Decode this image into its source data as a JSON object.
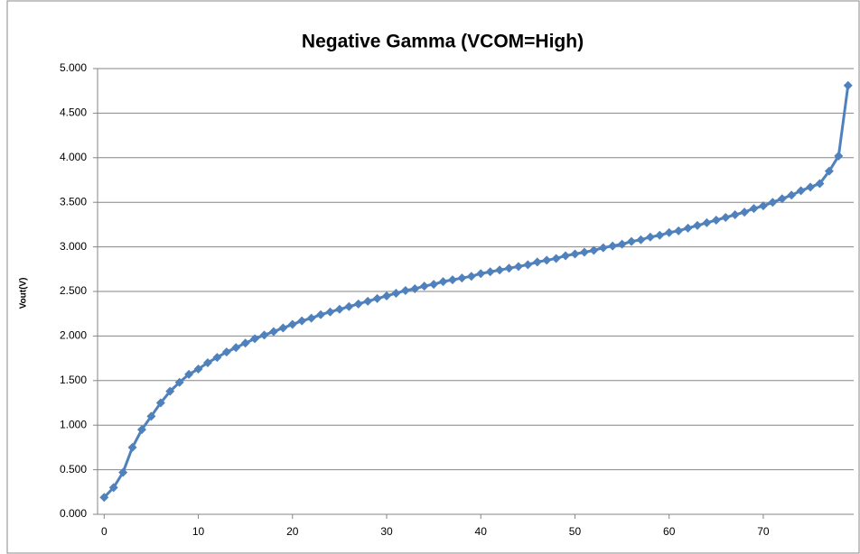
{
  "chart_data": {
    "type": "line",
    "title": "Negative Gamma (VCOM=High)",
    "y_label": "Vout(V)",
    "x": [
      0,
      1,
      2,
      3,
      4,
      5,
      6,
      7,
      8,
      9,
      10,
      11,
      12,
      13,
      14,
      15,
      16,
      17,
      18,
      19,
      20,
      21,
      22,
      23,
      24,
      25,
      26,
      27,
      28,
      29,
      30,
      31,
      32,
      33,
      34,
      35,
      36,
      37,
      38,
      39,
      40,
      41,
      42,
      43,
      44,
      45,
      46,
      47,
      48,
      49,
      50,
      51,
      52,
      53,
      54,
      55,
      56,
      57,
      58,
      59,
      60,
      61,
      62,
      63,
      64,
      65,
      66,
      67,
      68,
      69,
      70,
      71,
      72,
      73,
      74,
      75,
      76,
      77,
      78,
      79
    ],
    "values": [
      0.19,
      0.3,
      0.47,
      0.75,
      0.95,
      1.1,
      1.25,
      1.38,
      1.48,
      1.57,
      1.63,
      1.7,
      1.76,
      1.82,
      1.87,
      1.92,
      1.97,
      2.01,
      2.05,
      2.09,
      2.13,
      2.17,
      2.2,
      2.24,
      2.27,
      2.3,
      2.33,
      2.36,
      2.39,
      2.42,
      2.45,
      2.48,
      2.51,
      2.53,
      2.56,
      2.58,
      2.61,
      2.63,
      2.65,
      2.67,
      2.7,
      2.72,
      2.74,
      2.76,
      2.78,
      2.8,
      2.83,
      2.85,
      2.87,
      2.9,
      2.92,
      2.94,
      2.96,
      2.99,
      3.01,
      3.03,
      3.06,
      3.08,
      3.11,
      3.13,
      3.16,
      3.18,
      3.21,
      3.24,
      3.27,
      3.3,
      3.33,
      3.36,
      3.39,
      3.43,
      3.46,
      3.5,
      3.54,
      3.58,
      3.63,
      3.67,
      3.71,
      3.85,
      4.02,
      4.81
    ],
    "color": "#4f81bd",
    "xlim": [
      -0.7,
      79.6
    ],
    "xticks": [
      0,
      10,
      20,
      30,
      40,
      50,
      60,
      70
    ],
    "ylim": [
      0,
      5
    ],
    "yticks": [
      {
        "value": 0,
        "label": "0.000"
      },
      {
        "value": 0.5,
        "label": "0.500"
      },
      {
        "value": 1,
        "label": "1.000"
      },
      {
        "value": 1.5,
        "label": "1.500"
      },
      {
        "value": 2,
        "label": "2.000"
      },
      {
        "value": 2.5,
        "label": "2.500"
      },
      {
        "value": 3,
        "label": "3.000"
      },
      {
        "value": 3.5,
        "label": "3.500"
      },
      {
        "value": 4,
        "label": "4.000"
      },
      {
        "value": 4.5,
        "label": "4.500"
      },
      {
        "value": 5,
        "label": "5.000"
      }
    ],
    "grid": true
  }
}
